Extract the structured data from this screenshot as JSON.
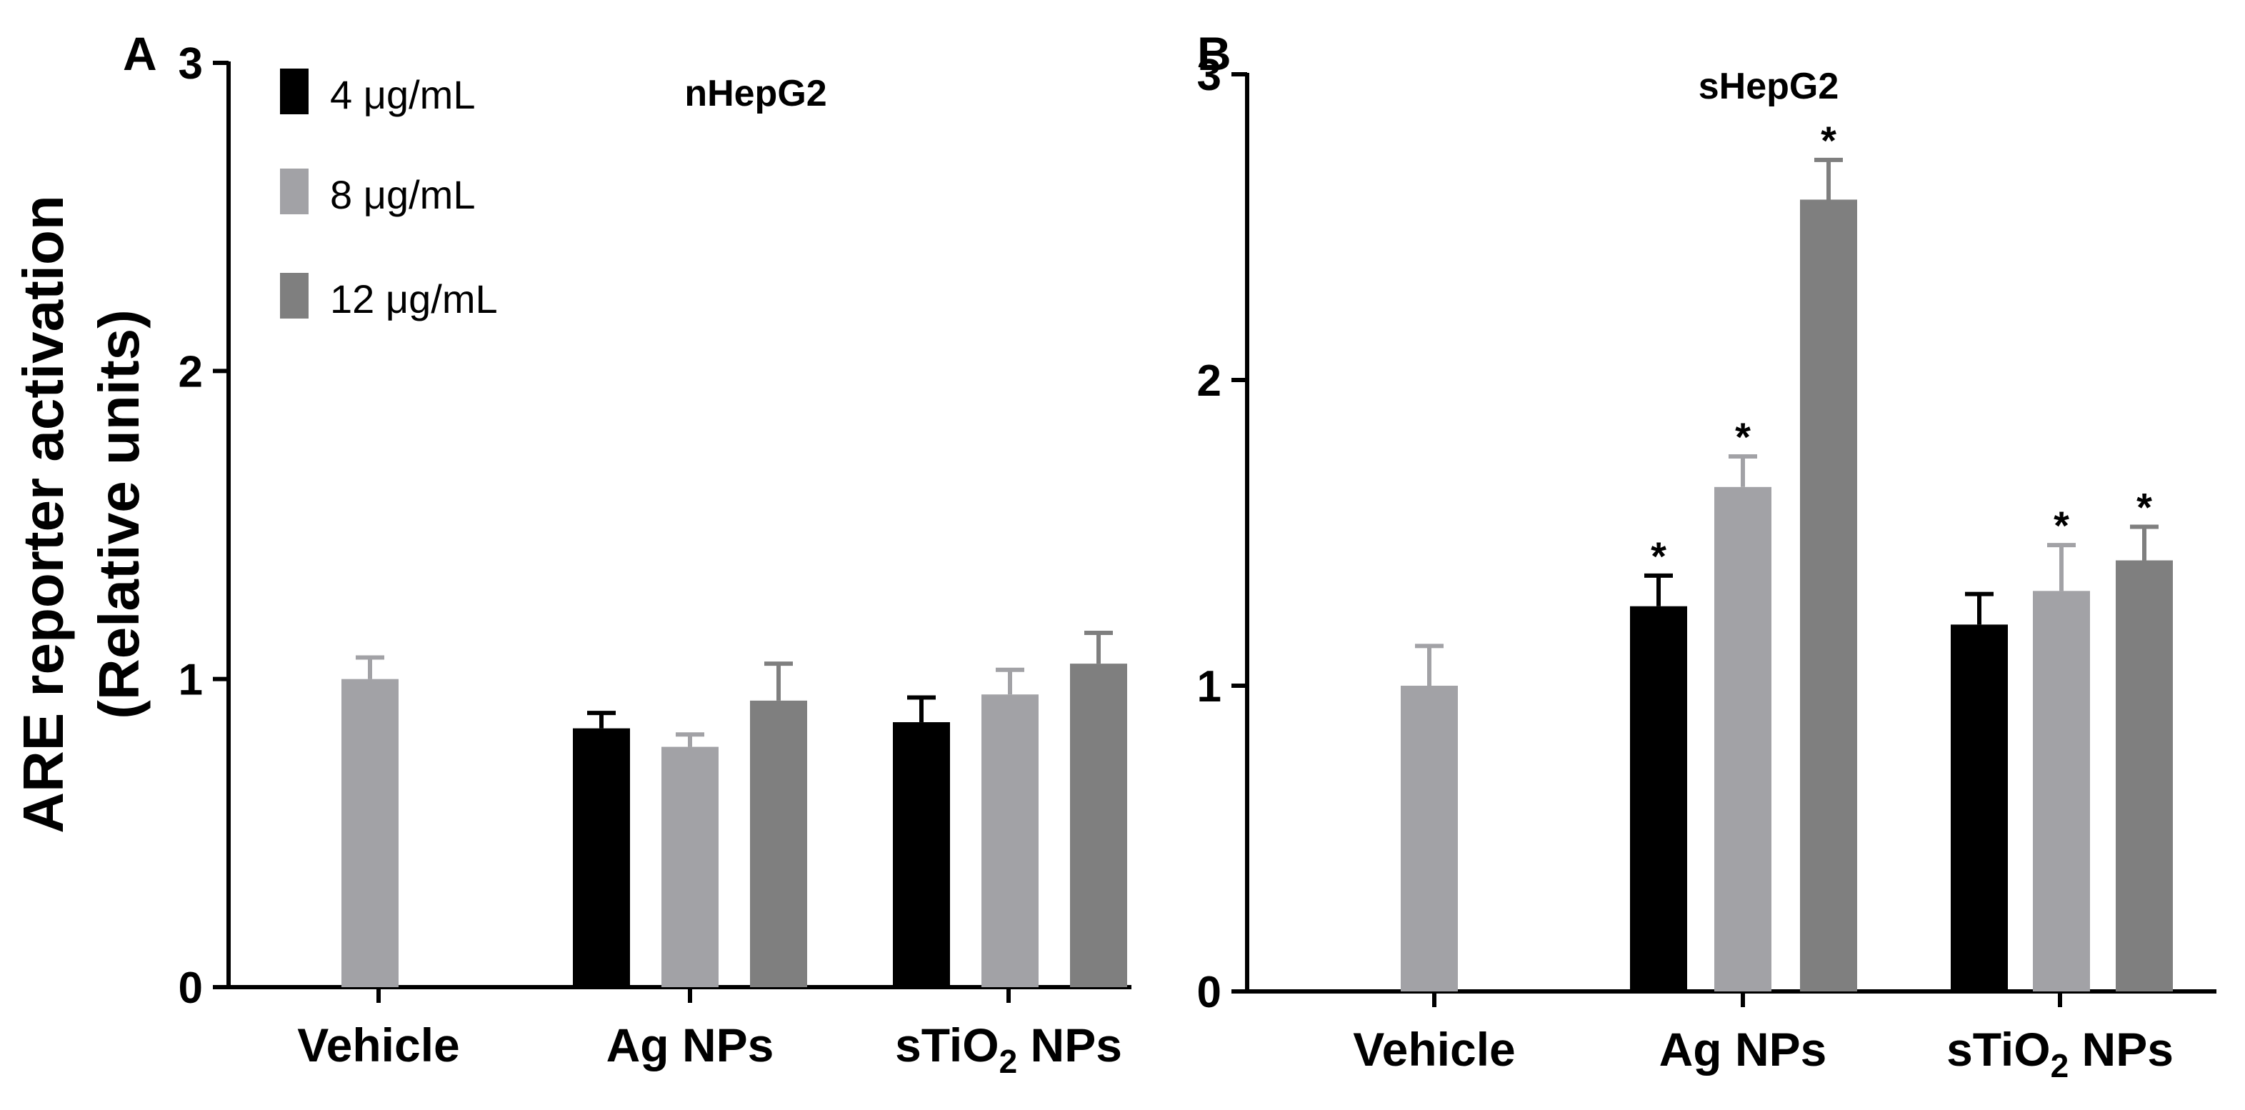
{
  "y_label_line1": "ARE reporter activation",
  "y_label_line2": "(Relative units)",
  "colors": {
    "4": "#000000",
    "8": "#a2a2a6",
    "12": "#7f7f7f",
    "axis": "#000000"
  },
  "legend": [
    {
      "key": "4",
      "label": "4 μg/mL"
    },
    {
      "key": "8",
      "label": "8 μg/mL"
    },
    {
      "key": "12",
      "label": "12 μg/mL"
    }
  ],
  "chart_data": [
    {
      "type": "bar",
      "panel": "A",
      "title": "nHepG2",
      "ylim": [
        0,
        3
      ],
      "yticks": [
        "0",
        "1",
        "2",
        "3"
      ],
      "groups": [
        {
          "label": "Vehicle",
          "sub": "",
          "suffix": "",
          "bars": [
            {
              "key": "8",
              "value": 1.0,
              "error": 0.07,
              "sig": ""
            }
          ]
        },
        {
          "label": "Ag NPs",
          "sub": "",
          "suffix": "",
          "bars": [
            {
              "key": "4",
              "value": 0.84,
              "error": 0.05,
              "sig": ""
            },
            {
              "key": "8",
              "value": 0.78,
              "error": 0.04,
              "sig": ""
            },
            {
              "key": "12",
              "value": 0.93,
              "error": 0.12,
              "sig": ""
            }
          ]
        },
        {
          "label": "sTiO",
          "sub": "2",
          "suffix": " NPs",
          "bars": [
            {
              "key": "4",
              "value": 0.86,
              "error": 0.08,
              "sig": ""
            },
            {
              "key": "8",
              "value": 0.95,
              "error": 0.08,
              "sig": ""
            },
            {
              "key": "12",
              "value": 1.05,
              "error": 0.1,
              "sig": ""
            }
          ]
        }
      ]
    },
    {
      "type": "bar",
      "panel": "B",
      "title": "sHepG2",
      "ylim": [
        0,
        3
      ],
      "yticks": [
        "0",
        "1",
        "2",
        "3"
      ],
      "groups": [
        {
          "label": "Vehicle",
          "sub": "",
          "suffix": "",
          "bars": [
            {
              "key": "8",
              "value": 1.0,
              "error": 0.13,
              "sig": ""
            }
          ]
        },
        {
          "label": "Ag NPs",
          "sub": "",
          "suffix": "",
          "bars": [
            {
              "key": "4",
              "value": 1.26,
              "error": 0.1,
              "sig": "*"
            },
            {
              "key": "8",
              "value": 1.65,
              "error": 0.1,
              "sig": "*"
            },
            {
              "key": "12",
              "value": 2.59,
              "error": 0.13,
              "sig": "*"
            }
          ]
        },
        {
          "label": "sTiO",
          "sub": "2",
          "suffix": " NPs",
          "bars": [
            {
              "key": "4",
              "value": 1.2,
              "error": 0.1,
              "sig": ""
            },
            {
              "key": "8",
              "value": 1.31,
              "error": 0.15,
              "sig": "*"
            },
            {
              "key": "12",
              "value": 1.41,
              "error": 0.11,
              "sig": "*"
            }
          ]
        }
      ]
    }
  ]
}
